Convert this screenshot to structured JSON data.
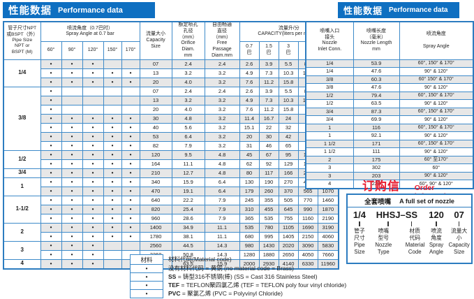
{
  "colors": {
    "title_bar_bg": "#0e6fc1",
    "table_border": "#3d8ac9",
    "row_shade": "#e7e7e7",
    "accent_red": "#e8192c"
  },
  "left_panel": {
    "title_cn": "性能数据",
    "title_en": "Performance data",
    "header": {
      "pipe": "管子尺寸NPT\n或BSPT（外）\nPipe Size\nNPT or\nBSPT (M)",
      "spray_angle_group": "喷流角度（0.7巴时）\nSpray Angle at 0.7 bar",
      "angles": [
        "60°",
        "90°",
        "120°",
        "150°",
        "170°"
      ],
      "capacity_size": "流量大小\nCapacity\nSize",
      "orifice": "额定喷孔\n孔径\n（mm）\nOrifice\nDiam.\nmm",
      "free_passage": "自由畅通\n直径\n（mm）\nFree\nPassage\nDiam.mm",
      "capacity_group": "流量升/分\nCAPACITY(liters per minute)",
      "pressures": [
        "0.7\n巴",
        "1.5\n巴",
        "3\n巴",
        "7\n巴",
        "25**\n巴"
      ]
    },
    "dot_symbol": "•",
    "groups": [
      {
        "pipe": "1/4",
        "rows": [
          {
            "size": "07",
            "dots": [
              1,
              1,
              1,
              0,
              0
            ],
            "vals": [
              "2.4",
              "2.4",
              "2.6",
              "3.9",
              "5.5",
              "8.4",
              "16"
            ]
          },
          {
            "size": "13",
            "dots": [
              1,
              1,
              1,
              1,
              1
            ],
            "vals": [
              "3.2",
              "3.2",
              "4.9",
              "7.3",
              "10.3",
              "15.7",
              "30"
            ]
          },
          {
            "size": "20",
            "dots": [
              1,
              1,
              1,
              1,
              1
            ],
            "vals": [
              "4.0",
              "3.2",
              "7.6",
              "11.2",
              "15.8",
              "24",
              "46"
            ]
          }
        ]
      },
      {
        "pipe": "3/8",
        "rows": [
          {
            "size": "07",
            "dots": [
              1,
              0,
              0,
              0,
              0
            ],
            "vals": [
              "2.4",
              "2.4",
              "2.6",
              "3.9",
              "5.5",
              "8.4",
              "16"
            ]
          },
          {
            "size": "13",
            "dots": [
              1,
              0,
              0,
              0,
              0
            ],
            "vals": [
              "3.2",
              "3.2",
              "4.9",
              "7.3",
              "10.3",
              "15.7",
              "30"
            ]
          },
          {
            "size": "20",
            "dots": [
              1,
              0,
              0,
              0,
              0
            ],
            "vals": [
              "4.0",
              "3.2",
              "7.6",
              "11.2",
              "15.8",
              "24",
              "46"
            ]
          },
          {
            "size": "30",
            "dots": [
              1,
              1,
              1,
              1,
              1
            ],
            "vals": [
              "4.8",
              "3.2",
              "11.4",
              "16.7",
              "24",
              "36",
              "68"
            ]
          },
          {
            "size": "40",
            "dots": [
              1,
              1,
              1,
              1,
              1
            ],
            "vals": [
              "5.6",
              "3.2",
              "15.1",
              "22",
              "32",
              "48",
              "91"
            ]
          },
          {
            "size": "53",
            "dots": [
              1,
              1,
              1,
              1,
              1
            ],
            "vals": [
              "6.4",
              "3.2",
              "20",
              "30",
              "42",
              "64",
              "121"
            ]
          },
          {
            "size": "82",
            "dots": [
              1,
              1,
              1,
              1,
              1
            ],
            "vals": [
              "7.9",
              "3.2",
              "31",
              "46",
              "65",
              "99",
              "187"
            ]
          }
        ]
      },
      {
        "pipe": "1/2",
        "rows": [
          {
            "size": "120",
            "dots": [
              1,
              1,
              1,
              1,
              1
            ],
            "vals": [
              "9.5",
              "4.8",
              "45",
              "67",
              "95",
              "145",
              "270"
            ]
          },
          {
            "size": "164",
            "dots": [
              1,
              1,
              1,
              1,
              1
            ],
            "vals": [
              "11.1",
              "4.8",
              "62",
              "92",
              "129",
              "198",
              "370"
            ]
          }
        ]
      },
      {
        "pipe": "3/4",
        "rows": [
          {
            "size": "210",
            "dots": [
              1,
              1,
              1,
              1,
              1
            ],
            "vals": [
              "12.7",
              "4.8",
              "80",
              "117",
              "166",
              "255",
              "480"
            ]
          }
        ]
      },
      {
        "pipe": "1",
        "rows": [
          {
            "size": "340",
            "dots": [
              1,
              1,
              1,
              1,
              1
            ],
            "vals": [
              "15.9",
              "6.4",
              "130",
              "190",
              "270",
              "410",
              "775"
            ]
          },
          {
            "size": "470",
            "dots": [
              1,
              1,
              1,
              1,
              1
            ],
            "vals": [
              "19.1",
              "6.4",
              "179",
              "260",
              "370",
              "565",
              "1070"
            ]
          }
        ]
      },
      {
        "pipe": "1-1/2",
        "rows": [
          {
            "size": "640",
            "dots": [
              1,
              1,
              1,
              1,
              1
            ],
            "vals": [
              "22.2",
              "7.9",
              "245",
              "355",
              "505",
              "770",
              "1460"
            ]
          },
          {
            "size": "820",
            "dots": [
              1,
              1,
              1,
              1,
              1
            ],
            "vals": [
              "25.4",
              "7.9",
              "310",
              "455",
              "645",
              "990",
              "1870"
            ]
          },
          {
            "size": "960",
            "dots": [
              1,
              1,
              1,
              1,
              1
            ],
            "vals": [
              "28.6",
              "7.9",
              "365",
              "535",
              "755",
              "1160",
              "2190"
            ]
          }
        ]
      },
      {
        "pipe": "2",
        "rows": [
          {
            "size": "1400",
            "dots": [
              1,
              1,
              1,
              1,
              1
            ],
            "vals": [
              "34.9",
              "11.1",
              "535",
              "780",
              "1105",
              "1690",
              "3190"
            ]
          },
          {
            "size": "1780",
            "dots": [
              1,
              1,
              1,
              1,
              1
            ],
            "vals": [
              "38.1",
              "11.1",
              "680",
              "995",
              "1405",
              "2150",
              "4060"
            ]
          }
        ]
      },
      {
        "pipe": "3",
        "rows": [
          {
            "size": "2560",
            "dots": [
              1,
              1,
              1,
              0,
              0
            ],
            "vals": [
              "44.5",
              "14.3",
              "980",
              "1430",
              "2020",
              "3090",
              "5830"
            ]
          },
          {
            "size": "3360",
            "dots": [
              1,
              1,
              1,
              0,
              0
            ],
            "vals": [
              "50.8",
              "14.3",
              "1280",
              "1880",
              "2650",
              "4050",
              "7660"
            ]
          }
        ]
      },
      {
        "pipe": "4",
        "rows": [
          {
            "size": "5250",
            "dots": [
              1,
              1,
              1,
              0,
              0
            ],
            "vals": [
              "63.5",
              "15.9",
              "2000",
              "2930",
              "4140",
              "6330",
              "11960"
            ]
          }
        ]
      }
    ]
  },
  "right_panel": {
    "title_cn": "性能数据",
    "title_en": "Performance data",
    "header": {
      "inlet": "喷嘴入口\n接头\nNozzle\nInlet Conn.",
      "length": "喷嘴长度\n（毫米）\nNozzle Length\nmm",
      "angle": "喷流角度\n\nSpray Angle"
    },
    "rows": [
      [
        "1/4",
        "53.9",
        "60°, 150° & 170°"
      ],
      [
        "1/4",
        "47.6",
        "90° & 120°"
      ],
      [
        "3/8",
        "60.3",
        "60° 150° & 170°"
      ],
      [
        "3/8",
        "47.6",
        "90° & 120°"
      ],
      [
        "1/2",
        "79.4",
        "60°, 150° & 170°"
      ],
      [
        "1/2",
        "63.5",
        "90° & 120°"
      ],
      [
        "3/4",
        "87.3",
        "60°, 150° & 170°"
      ],
      [
        "3/4",
        "69.9",
        "90° & 120°"
      ],
      [
        "1",
        "116",
        "60°, 150° & 170°"
      ],
      [
        "1",
        "92.1",
        "90° & 120°"
      ],
      [
        "1 1/2",
        "171",
        "60°, 150° & 170°"
      ],
      [
        "1 1/2",
        "111",
        "90° & 120°"
      ],
      [
        "2",
        "175",
        "60° 至170°"
      ],
      [
        "3",
        "302",
        "60°"
      ],
      [
        "3",
        "203",
        "90° & 120°"
      ],
      [
        "4",
        "229",
        "60°, 90° & 120°"
      ]
    ]
  },
  "material": {
    "column_title": "材料",
    "bullet": "•",
    "title": "材料代码(Material code)",
    "items": [
      {
        "code": "",
        "text": "没有材料代码 = 黄铜  (no material code = Brass)"
      },
      {
        "code": "SS",
        "text": " = 铸型316不锈钢(棒) (SS = Cast 316 Stainless Steel)"
      },
      {
        "code": "TEF",
        "text": " = TEFLON聚四氯乙烯 (TEF = TEFLON poly four vinyl chloride)"
      },
      {
        "code": "PVC",
        "text": " = 聚氯乙烯 (PVC = Polyvinyl Chloride)"
      }
    ]
  },
  "order": {
    "title_cn": "订购信息",
    "title_en": "Order information",
    "set_label_cn": "全套喷嘴",
    "set_label_en": "A full set of nozzle",
    "parts": [
      {
        "code": "1/4",
        "label": "管子\n尺寸\nPipe\nSize"
      },
      {
        "code": "HHSJ–",
        "label": "喷嘴\n型号\nNozzle\nType"
      },
      {
        "code": "SS",
        "label": "材质\n代码\nMaterial\nCode"
      },
      {
        "code": "120",
        "label": "喷流\n角度\nSpray\nAngle"
      },
      {
        "code": "07",
        "label": "流量大小\nCapacity\nSize"
      }
    ]
  }
}
